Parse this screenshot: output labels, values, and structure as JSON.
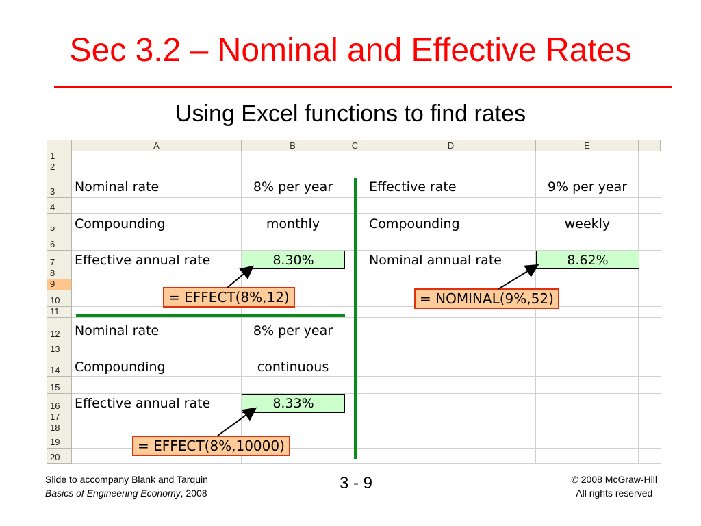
{
  "slide": {
    "title": "Sec 3.2 – Nominal and Effective Rates",
    "subtitle": "Using Excel functions to find rates"
  },
  "sheet": {
    "columns": [
      "A",
      "B",
      "C",
      "D",
      "E"
    ],
    "rows": [
      "1",
      "2",
      "3",
      "4",
      "5",
      "6",
      "7",
      "8",
      "9",
      "10",
      "11",
      "12",
      "13",
      "14",
      "15",
      "16",
      "17",
      "18",
      "19",
      "20"
    ],
    "selected_row": "9",
    "block1": {
      "nominal_label": "Nominal rate",
      "nominal_value": "8% per year",
      "compounding_label": "Compounding",
      "compounding_value": "monthly",
      "effective_label": "Effective annual rate",
      "effective_value": "8.30%",
      "formula": "= EFFECT(8%,12)"
    },
    "block2": {
      "effective_label": "Effective rate",
      "effective_value": "9% per year",
      "compounding_label": "Compounding",
      "compounding_value": "weekly",
      "nominal_label": "Nominal annual rate",
      "nominal_value": "8.62%",
      "formula": "= NOMINAL(9%,52)"
    },
    "block3": {
      "nominal_label": "Nominal rate",
      "nominal_value": "8% per year",
      "compounding_label": "Compounding",
      "compounding_value": "continuous",
      "effective_label": "Effective annual rate",
      "effective_value": "8.33%",
      "formula": "= EFFECT(8%,10000)"
    }
  },
  "footer": {
    "left_line1": "Slide to accompany Blank and Tarquin",
    "left_book": "Basics of Engineering Economy",
    "left_year": ", 2008",
    "page": "3 - 9",
    "right_line1": "© 2008 McGraw-Hill",
    "right_line2": "All rights reserved"
  },
  "colors": {
    "title": "#ff0000",
    "highlight_cell": "#ccffcc",
    "callout_fill": "#ffcc99",
    "divider_green": "#0a8a1a"
  }
}
